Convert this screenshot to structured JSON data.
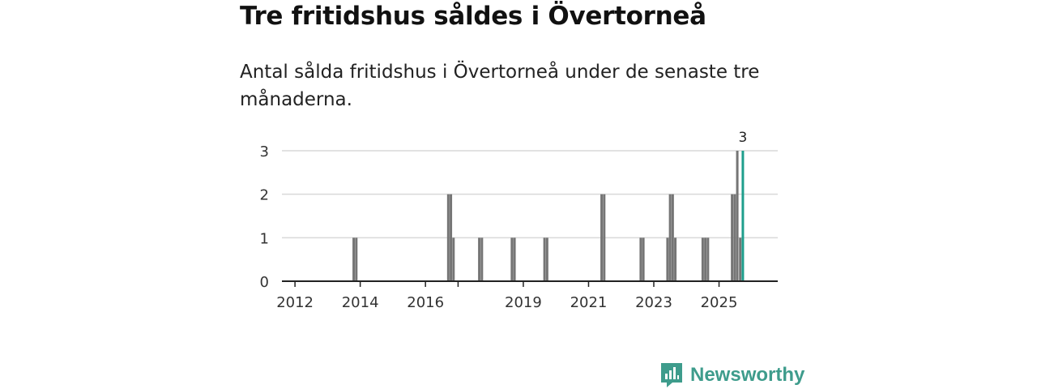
{
  "title": "Tre fritidshus såldes i Övertorneå",
  "subtitle": "Antal sålda fritidshus i Övertorneå under de senaste tre månaderna.",
  "brand": {
    "name": "Newsworthy",
    "icon": "newsworthy-logo-icon",
    "color": "#3e9c8c"
  },
  "colors": {
    "bar": "#757575",
    "highlight": "#1e9e8c",
    "grid": "#d9d9d9",
    "axis": "#222222"
  },
  "chart_data": {
    "type": "bar",
    "title": "Tre fritidshus såldes i Övertorneå",
    "subtitle": "Antal sålda fritidshus i Övertorneå under de senaste tre månaderna.",
    "xlabel": "",
    "ylabel": "",
    "x_unit": "month",
    "xlim": [
      2011.6,
      2026.8
    ],
    "ylim": [
      0,
      3
    ],
    "y_ticks": [
      0,
      1,
      2,
      3
    ],
    "x_ticks": [
      {
        "year": 2012,
        "label": "2012"
      },
      {
        "year": 2014,
        "label": "2014"
      },
      {
        "year": 2016,
        "label": "2016"
      },
      {
        "year": 2017,
        "label": ""
      },
      {
        "year": 2019,
        "label": "2019"
      },
      {
        "year": 2021,
        "label": "2021"
      },
      {
        "year": 2023,
        "label": "2023"
      },
      {
        "year": 2025,
        "label": "2025"
      }
    ],
    "grid": true,
    "series": [
      {
        "name": "Sålda fritidshus",
        "points": [
          {
            "x": 2013.8,
            "value": 1
          },
          {
            "x": 2013.88,
            "value": 1
          },
          {
            "x": 2016.7,
            "value": 2
          },
          {
            "x": 2016.78,
            "value": 2
          },
          {
            "x": 2016.86,
            "value": 1
          },
          {
            "x": 2017.65,
            "value": 1
          },
          {
            "x": 2017.73,
            "value": 1
          },
          {
            "x": 2018.65,
            "value": 1
          },
          {
            "x": 2018.73,
            "value": 1
          },
          {
            "x": 2019.65,
            "value": 1
          },
          {
            "x": 2019.73,
            "value": 1
          },
          {
            "x": 2021.4,
            "value": 2
          },
          {
            "x": 2021.48,
            "value": 2
          },
          {
            "x": 2022.6,
            "value": 1
          },
          {
            "x": 2022.68,
            "value": 1
          },
          {
            "x": 2023.42,
            "value": 1
          },
          {
            "x": 2023.5,
            "value": 2
          },
          {
            "x": 2023.58,
            "value": 2
          },
          {
            "x": 2023.66,
            "value": 1
          },
          {
            "x": 2024.5,
            "value": 1
          },
          {
            "x": 2024.58,
            "value": 1
          },
          {
            "x": 2024.66,
            "value": 1
          },
          {
            "x": 2025.4,
            "value": 2
          },
          {
            "x": 2025.48,
            "value": 2
          },
          {
            "x": 2025.56,
            "value": 3
          },
          {
            "x": 2025.65,
            "value": 1
          }
        ]
      }
    ],
    "highlight": {
      "x": 2025.73,
      "value": 3,
      "label": "3"
    }
  }
}
